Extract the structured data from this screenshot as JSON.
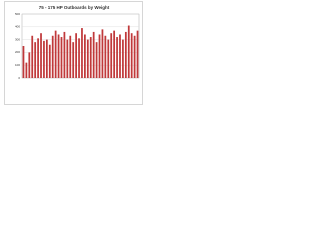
{
  "chart_data": {
    "type": "bar",
    "title": "75 - 175 HP Outboards by Weight",
    "categories": [
      null,
      null,
      null,
      null,
      null,
      null,
      null,
      null,
      null,
      null,
      null,
      null,
      null,
      null,
      null,
      null,
      null,
      null,
      null,
      null,
      null,
      null,
      null,
      null,
      null,
      null,
      null,
      null,
      null,
      null,
      null,
      null,
      null,
      null,
      null,
      null,
      null,
      null,
      null,
      null
    ],
    "values": [
      250,
      120,
      200,
      330,
      280,
      310,
      350,
      290,
      300,
      260,
      330,
      370,
      340,
      320,
      360,
      300,
      330,
      280,
      350,
      310,
      390,
      340,
      300,
      320,
      360,
      280,
      340,
      380,
      330,
      300,
      350,
      370,
      320,
      340,
      300,
      360,
      410,
      350,
      330,
      370
    ],
    "color": "#c0393b",
    "ylim": [
      0,
      500
    ],
    "yticks": [
      0,
      100,
      200,
      300,
      400,
      500
    ],
    "grid": true
  }
}
